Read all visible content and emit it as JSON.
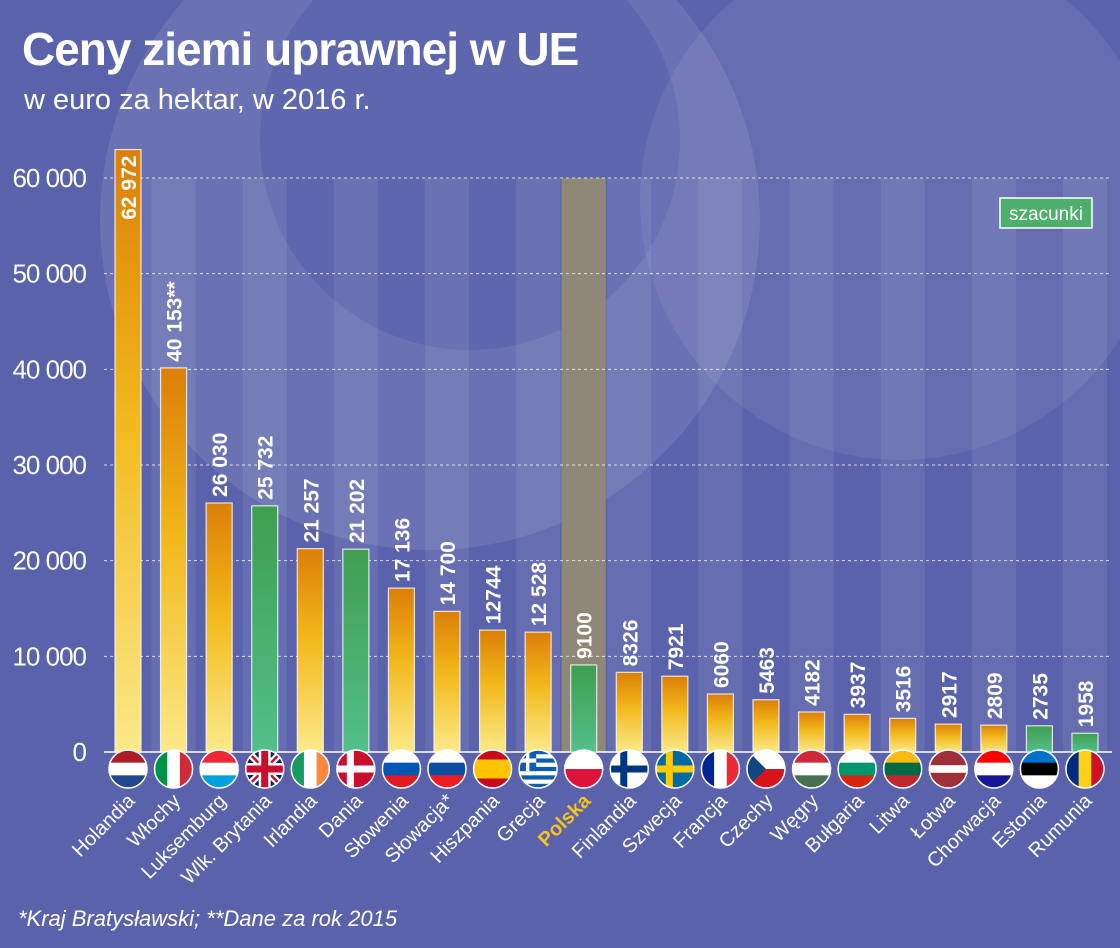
{
  "chart_data": {
    "type": "bar",
    "title": "Ceny ziemi uprawnej w UE",
    "subtitle": "w euro za hektar, w 2016 r.",
    "footnote": "*Kraj Bratysławski; **Dane za rok 2015",
    "legend": "szacunki",
    "legend_placement": "top-right",
    "ylim": [
      0,
      60000
    ],
    "yticks": [
      0,
      10000,
      20000,
      30000,
      40000,
      50000,
      60000
    ],
    "ytick_labels": [
      "0",
      "10 000",
      "20 000",
      "30 000",
      "40 000",
      "50 000",
      "60 000"
    ],
    "grid": true,
    "highlight": "Polska",
    "colors": {
      "actual": "#f2b91c",
      "estimate": "#4caf6a",
      "highlight_label": "#f6c21c",
      "highlight_column": "#8f8878",
      "background": "#5a62ab"
    },
    "categories": [
      "Holandia",
      "Włochy",
      "Luksemburg",
      "Wlk. Brytania",
      "Irlandia",
      "Dania",
      "Słowenia",
      "Słowacja*",
      "Hiszpania",
      "Grecja",
      "Polska",
      "Finlandia",
      "Szwecja",
      "Francja",
      "Czechy",
      "Węgry",
      "Bułgaria",
      "Litwa",
      "Łotwa",
      "Chorwacja",
      "Estonia",
      "Rumunia"
    ],
    "values": [
      62972,
      40153,
      26030,
      25732,
      21257,
      21202,
      17136,
      14700,
      12744,
      12528,
      9100,
      8326,
      7921,
      6060,
      5463,
      4182,
      3937,
      3516,
      2917,
      2809,
      2735,
      1958
    ],
    "value_labels": [
      "62 972",
      "40 153**",
      "26 030",
      "25 732",
      "21 257",
      "21 202",
      "17 136",
      "14 700",
      "12744",
      "12 528",
      "9100",
      "8326",
      "7921",
      "6060",
      "5463",
      "4182",
      "3937",
      "3516",
      "2917",
      "2809",
      "2735",
      "1958"
    ],
    "estimate": [
      false,
      false,
      false,
      true,
      false,
      true,
      false,
      false,
      false,
      false,
      true,
      false,
      false,
      false,
      false,
      false,
      false,
      false,
      false,
      false,
      true,
      true
    ],
    "flags": [
      {
        "t": "h",
        "c": [
          "#ae1c28",
          "#fff",
          "#21468b"
        ]
      },
      {
        "t": "v",
        "c": [
          "#009246",
          "#fff",
          "#ce2b37"
        ]
      },
      {
        "t": "h",
        "c": [
          "#ed2939",
          "#fff",
          "#00a1de"
        ]
      },
      {
        "t": "uk",
        "c": [
          "#012169",
          "#fff",
          "#c8102e"
        ]
      },
      {
        "t": "v",
        "c": [
          "#169b62",
          "#fff",
          "#ff883e"
        ]
      },
      {
        "t": "x",
        "c": [
          "#c8102e",
          "#fff"
        ]
      },
      {
        "t": "h",
        "c": [
          "#fff",
          "#0056b3",
          "#e21b23"
        ]
      },
      {
        "t": "h",
        "c": [
          "#fff",
          "#0b4ea2",
          "#ee1c25"
        ]
      },
      {
        "t": "h",
        "c": [
          "#c60b1e",
          "#ffc400",
          "#ffc400",
          "#c60b1e"
        ]
      },
      {
        "t": "gr",
        "c": [
          "#0d5eaf",
          "#fff"
        ]
      },
      {
        "t": "h",
        "c": [
          "#fff",
          "#dc143c"
        ]
      },
      {
        "t": "x",
        "c": [
          "#fff",
          "#003580"
        ]
      },
      {
        "t": "x",
        "c": [
          "#006aa7",
          "#fecc00"
        ]
      },
      {
        "t": "v",
        "c": [
          "#002395",
          "#fff",
          "#ed2939"
        ]
      },
      {
        "t": "cz",
        "c": [
          "#fff",
          "#d7141a",
          "#11457e"
        ]
      },
      {
        "t": "h",
        "c": [
          "#ce2939",
          "#fff",
          "#477050"
        ]
      },
      {
        "t": "h",
        "c": [
          "#fff",
          "#00966e",
          "#d62612"
        ]
      },
      {
        "t": "h",
        "c": [
          "#fdb913",
          "#006a44",
          "#c1272d"
        ]
      },
      {
        "t": "h",
        "c": [
          "#9e3039",
          "#9e3039",
          "#fff",
          "#9e3039",
          "#9e3039"
        ]
      },
      {
        "t": "h",
        "c": [
          "#ff0000",
          "#fff",
          "#171796"
        ]
      },
      {
        "t": "h",
        "c": [
          "#0072ce",
          "#000",
          "#fff"
        ]
      },
      {
        "t": "v",
        "c": [
          "#002b7f",
          "#fcd116",
          "#ce1126"
        ]
      }
    ]
  }
}
